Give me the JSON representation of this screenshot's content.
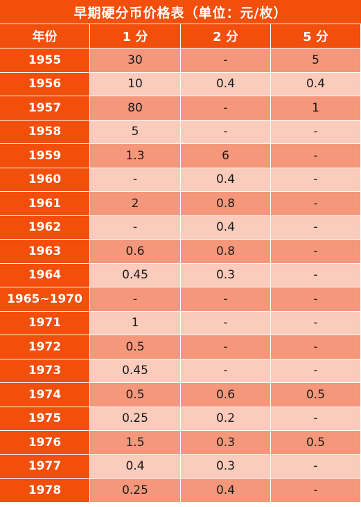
{
  "title": "早期硬分币价格表（单位：元/枚）",
  "headers": [
    "年份",
    "1 分",
    "2 分",
    "5 分"
  ],
  "rows": [
    {
      "year": "1955",
      "c1": "30",
      "c2": "-",
      "c5": "5"
    },
    {
      "year": "1956",
      "c1": "10",
      "c2": "0.4",
      "c5": "0.4"
    },
    {
      "year": "1957",
      "c1": "80",
      "c2": "-",
      "c5": "1"
    },
    {
      "year": "1958",
      "c1": "5",
      "c2": "-",
      "c5": "-"
    },
    {
      "year": "1959",
      "c1": "1.3",
      "c2": "6",
      "c5": "-"
    },
    {
      "year": "1960",
      "c1": "-",
      "c2": "0.4",
      "c5": "-"
    },
    {
      "year": "1961",
      "c1": "2",
      "c2": "0.8",
      "c5": "-"
    },
    {
      "year": "1962",
      "c1": "-",
      "c2": "0.4",
      "c5": "-"
    },
    {
      "year": "1963",
      "c1": "0.6",
      "c2": "0.8",
      "c5": "-"
    },
    {
      "year": "1964",
      "c1": "0.45",
      "c2": "0.3",
      "c5": "-"
    },
    {
      "year": "1965~1970",
      "c1": "-",
      "c2": "-",
      "c5": "-"
    },
    {
      "year": "1971",
      "c1": "1",
      "c2": "-",
      "c5": "-"
    },
    {
      "year": "1972",
      "c1": "0.5",
      "c2": "-",
      "c5": "-"
    },
    {
      "year": "1973",
      "c1": "0.45",
      "c2": "-",
      "c5": "-"
    },
    {
      "year": "1974",
      "c1": "0.5",
      "c2": "0.6",
      "c5": "0.5"
    },
    {
      "year": "1975",
      "c1": "0.25",
      "c2": "0.2",
      "c5": "-"
    },
    {
      "year": "1976",
      "c1": "1.5",
      "c2": "0.3",
      "c5": "0.5"
    },
    {
      "year": "1977",
      "c1": "0.4",
      "c2": "0.3",
      "c5": "-"
    },
    {
      "year": "1978",
      "c1": "0.25",
      "c2": "0.4",
      "c5": "-"
    }
  ],
  "colors": {
    "header_bg": "#f24e0c",
    "row_dark": "#f4977a",
    "row_light": "#fbcbbb"
  }
}
